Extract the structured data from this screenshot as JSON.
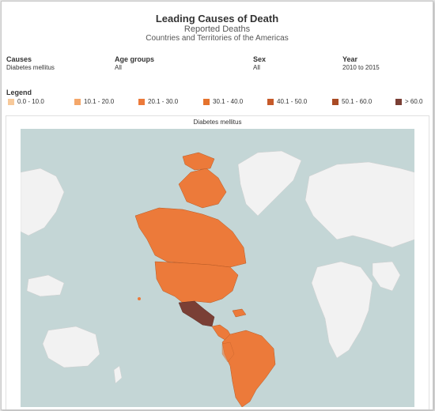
{
  "header": {
    "title": "Leading Causes of Death",
    "subtitle": "Reported Deaths",
    "region": "Countries and Territories of the Americas"
  },
  "filters": [
    {
      "label": "Causes",
      "value": "Diabetes mellitus"
    },
    {
      "label": "Age groups",
      "value": "All"
    },
    {
      "label": "Sex",
      "value": "All"
    },
    {
      "label": "Year",
      "value": "2010 to 2015"
    }
  ],
  "legend": {
    "title": "Legend",
    "items": [
      {
        "label": "0.0 - 10.0",
        "color": "#f7c99a"
      },
      {
        "label": "10.1 - 20.0",
        "color": "#f4a76a"
      },
      {
        "label": "20.1 - 30.0",
        "color": "#ec7a3a"
      },
      {
        "label": "30.1 - 40.0",
        "color": "#e5732d"
      },
      {
        "label": "40.1 - 50.0",
        "color": "#c65a2a"
      },
      {
        "label": "50.1 - 60.0",
        "color": "#a94a24"
      },
      {
        "label": "> 60.0",
        "color": "#7a3f35"
      }
    ]
  },
  "map": {
    "title": "Diabetes mellitus",
    "ocean_color": "#c4d6d6",
    "land_color": "#f2f2f2",
    "highlight_color": "#ec7a3a",
    "dark_color": "#7a3f35"
  }
}
